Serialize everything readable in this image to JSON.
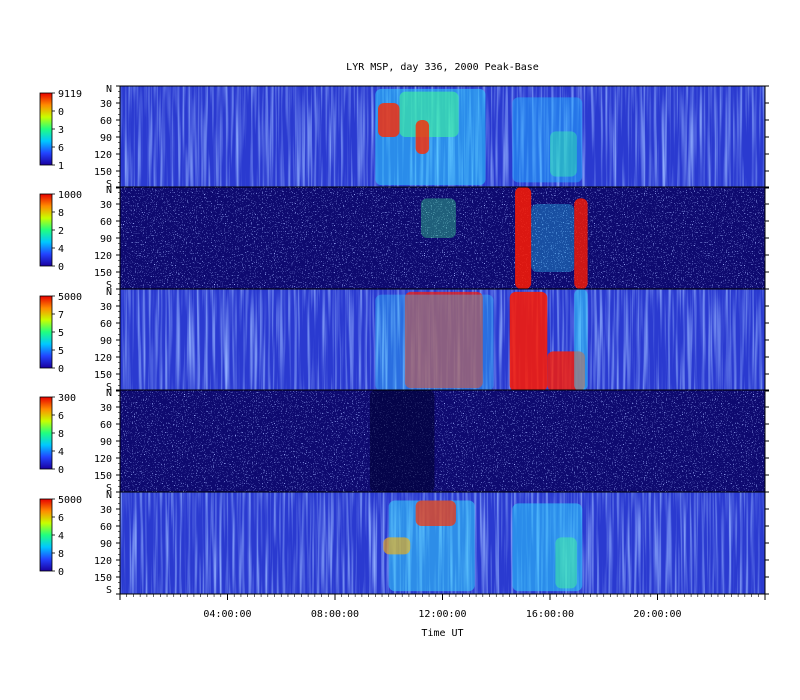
{
  "chart_data": {
    "type": "heatmap",
    "title": "LYR MSP, day 336, 2000 Peak-Base",
    "xlabel": "Time UT",
    "x_ticks": [
      "04:00:00",
      "08:00:00",
      "12:00:00",
      "16:00:00",
      "20:00:00"
    ],
    "x_tick_hours": [
      4,
      8,
      12,
      16,
      20
    ],
    "x_range_hours": [
      0,
      24
    ],
    "y_ticks": [
      "N",
      "30",
      "60",
      "90",
      "120",
      "150",
      "S"
    ],
    "y_tick_values": [
      0,
      30,
      60,
      90,
      120,
      150,
      180
    ],
    "y_range_deg": [
      0,
      180
    ],
    "colormap": [
      "#1a00a0",
      "#2244ff",
      "#00c8ff",
      "#20ff80",
      "#c8ff00",
      "#ff8c00",
      "#e80000"
    ],
    "panels": [
      {
        "colorbar_max": "9119",
        "colorbar_min": "1",
        "colorbar_mid_labels": [
          "0",
          "3",
          "6"
        ]
      },
      {
        "colorbar_max": "1000",
        "colorbar_min": "0",
        "colorbar_mid_labels": [
          "8",
          "2",
          "4"
        ]
      },
      {
        "colorbar_max": "5000",
        "colorbar_min": "0",
        "colorbar_mid_labels": [
          "7",
          "5",
          "5"
        ]
      },
      {
        "colorbar_max": "300",
        "colorbar_min": "0",
        "colorbar_mid_labels": [
          "6",
          "8",
          "4"
        ]
      },
      {
        "colorbar_max": "5000",
        "colorbar_min": "0",
        "colorbar_mid_labels": [
          "6",
          "4",
          "8"
        ]
      }
    ]
  }
}
